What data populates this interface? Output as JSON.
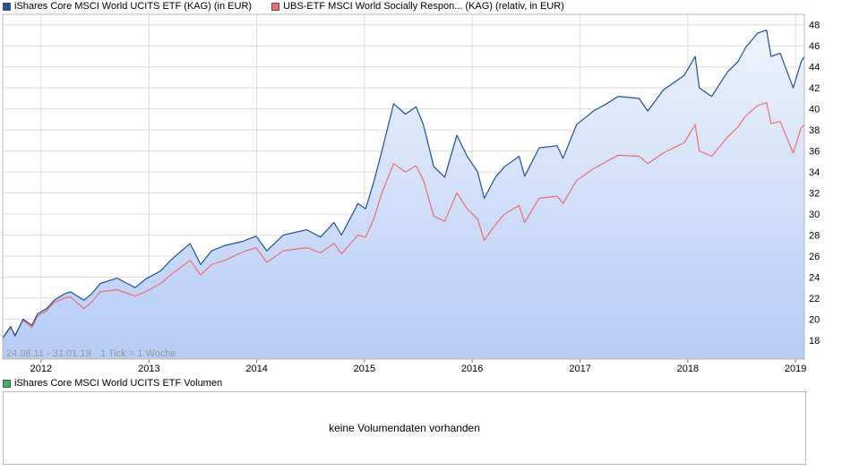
{
  "legend": {
    "series1": "iShares Core MSCI World UCITS ETF (KAG) (in EUR)",
    "series2": "UBS-ETF MSCI World Socially Respon... (KAG) (relativ, in EUR)",
    "volume": "iShares Core MSCI World UCITS ETF Volumen"
  },
  "colors": {
    "series1": "#1f4fa3",
    "series2": "#f06e6e",
    "volume": "#3cb371",
    "grid": "#dcdcdc",
    "area_top": "#eef3fd",
    "area_bottom": "#b5ccf5"
  },
  "range_label": "24.08.11 - 31.01.19",
  "tick_label": "1 Tick = 1 Woche",
  "volume_message": "keine Volumendaten vorhanden",
  "chart_data": {
    "type": "line",
    "x_range": [
      "2011-08-24",
      "2019-01-31"
    ],
    "ylim": [
      16.2,
      49
    ],
    "y_ticks": [
      18,
      20,
      22,
      24,
      26,
      28,
      30,
      32,
      34,
      36,
      38,
      40,
      42,
      44,
      46,
      48
    ],
    "x_ticks": [
      "2012",
      "2013",
      "2014",
      "2015",
      "2016",
      "2017",
      "2018",
      "2019"
    ],
    "grid": true,
    "legend_position": "top-left",
    "series": [
      {
        "name": "iShares Core MSCI World UCITS ETF (KAG) (in EUR)",
        "points": [
          [
            "2011-08-24",
            18.2
          ],
          [
            "2011-09-20",
            19.3
          ],
          [
            "2011-10-05",
            18.4
          ],
          [
            "2011-11-01",
            20.0
          ],
          [
            "2011-12-01",
            19.4
          ],
          [
            "2011-12-20",
            20.5
          ],
          [
            "2012-01-20",
            21.0
          ],
          [
            "2012-02-15",
            21.8
          ],
          [
            "2012-03-20",
            22.4
          ],
          [
            "2012-04-10",
            22.6
          ],
          [
            "2012-05-25",
            21.8
          ],
          [
            "2012-06-20",
            22.4
          ],
          [
            "2012-07-20",
            23.4
          ],
          [
            "2012-09-15",
            23.9
          ],
          [
            "2012-11-15",
            23.0
          ],
          [
            "2012-12-20",
            23.8
          ],
          [
            "2013-02-10",
            24.6
          ],
          [
            "2013-03-15",
            25.6
          ],
          [
            "2013-05-20",
            27.2
          ],
          [
            "2013-06-25",
            25.2
          ],
          [
            "2013-08-01",
            26.5
          ],
          [
            "2013-09-15",
            27.0
          ],
          [
            "2013-11-15",
            27.4
          ],
          [
            "2013-12-30",
            27.9
          ],
          [
            "2014-02-04",
            26.5
          ],
          [
            "2014-04-01",
            28.0
          ],
          [
            "2014-06-20",
            28.5
          ],
          [
            "2014-08-05",
            27.8
          ],
          [
            "2014-09-20",
            29.2
          ],
          [
            "2014-10-15",
            28.0
          ],
          [
            "2014-12-10",
            31.0
          ],
          [
            "2015-01-05",
            30.5
          ],
          [
            "2015-02-01",
            33.0
          ],
          [
            "2015-03-01",
            36.0
          ],
          [
            "2015-04-10",
            40.5
          ],
          [
            "2015-05-20",
            39.5
          ],
          [
            "2015-06-25",
            40.2
          ],
          [
            "2015-07-20",
            38.5
          ],
          [
            "2015-08-24",
            34.5
          ],
          [
            "2015-09-30",
            33.5
          ],
          [
            "2015-11-10",
            37.5
          ],
          [
            "2015-12-15",
            35.5
          ],
          [
            "2016-01-20",
            34.0
          ],
          [
            "2016-02-11",
            31.5
          ],
          [
            "2016-03-20",
            33.5
          ],
          [
            "2016-04-20",
            34.5
          ],
          [
            "2016-06-08",
            35.5
          ],
          [
            "2016-06-27",
            33.6
          ],
          [
            "2016-08-15",
            36.3
          ],
          [
            "2016-10-15",
            36.5
          ],
          [
            "2016-11-04",
            35.3
          ],
          [
            "2016-12-20",
            38.5
          ],
          [
            "2017-02-15",
            39.8
          ],
          [
            "2017-04-01",
            40.5
          ],
          [
            "2017-05-10",
            41.2
          ],
          [
            "2017-07-20",
            41.0
          ],
          [
            "2017-08-18",
            39.8
          ],
          [
            "2017-10-10",
            41.8
          ],
          [
            "2017-12-20",
            43.2
          ],
          [
            "2018-01-26",
            45.0
          ],
          [
            "2018-02-09",
            42.0
          ],
          [
            "2018-03-23",
            41.2
          ],
          [
            "2018-05-15",
            43.5
          ],
          [
            "2018-06-20",
            44.5
          ],
          [
            "2018-07-15",
            45.8
          ],
          [
            "2018-08-25",
            47.2
          ],
          [
            "2018-09-25",
            47.5
          ],
          [
            "2018-10-10",
            45.0
          ],
          [
            "2018-11-10",
            45.3
          ],
          [
            "2018-12-24",
            42.0
          ],
          [
            "2019-01-20",
            44.5
          ],
          [
            "2019-01-31",
            45.0
          ]
        ]
      },
      {
        "name": "UBS-ETF MSCI World Socially Respon... (KAG) (relativ, in EUR)",
        "points": [
          [
            "2011-08-24",
            18.2
          ],
          [
            "2011-09-20",
            19.2
          ],
          [
            "2011-10-05",
            18.5
          ],
          [
            "2011-11-01",
            19.9
          ],
          [
            "2011-12-01",
            19.2
          ],
          [
            "2011-12-20",
            20.3
          ],
          [
            "2012-01-20",
            20.8
          ],
          [
            "2012-02-15",
            21.6
          ],
          [
            "2012-03-20",
            22.0
          ],
          [
            "2012-04-10",
            22.1
          ],
          [
            "2012-05-25",
            21.0
          ],
          [
            "2012-06-20",
            21.6
          ],
          [
            "2012-07-20",
            22.6
          ],
          [
            "2012-09-15",
            22.8
          ],
          [
            "2012-11-15",
            22.2
          ],
          [
            "2012-12-20",
            22.6
          ],
          [
            "2013-02-10",
            23.4
          ],
          [
            "2013-03-15",
            24.2
          ],
          [
            "2013-05-20",
            25.6
          ],
          [
            "2013-06-25",
            24.2
          ],
          [
            "2013-08-01",
            25.2
          ],
          [
            "2013-09-15",
            25.6
          ],
          [
            "2013-11-15",
            26.4
          ],
          [
            "2013-12-30",
            26.8
          ],
          [
            "2014-02-04",
            25.4
          ],
          [
            "2014-04-01",
            26.5
          ],
          [
            "2014-06-20",
            26.8
          ],
          [
            "2014-08-05",
            26.3
          ],
          [
            "2014-09-20",
            27.2
          ],
          [
            "2014-10-15",
            26.2
          ],
          [
            "2014-12-10",
            28.0
          ],
          [
            "2015-01-05",
            27.8
          ],
          [
            "2015-02-01",
            29.5
          ],
          [
            "2015-03-01",
            32.0
          ],
          [
            "2015-04-10",
            34.8
          ],
          [
            "2015-05-20",
            34.0
          ],
          [
            "2015-06-25",
            34.6
          ],
          [
            "2015-07-20",
            33.2
          ],
          [
            "2015-08-24",
            29.8
          ],
          [
            "2015-09-30",
            29.3
          ],
          [
            "2015-11-10",
            32.0
          ],
          [
            "2015-12-15",
            30.5
          ],
          [
            "2016-01-20",
            29.5
          ],
          [
            "2016-02-11",
            27.5
          ],
          [
            "2016-03-20",
            29.0
          ],
          [
            "2016-04-20",
            30.0
          ],
          [
            "2016-06-08",
            30.8
          ],
          [
            "2016-06-27",
            29.2
          ],
          [
            "2016-08-15",
            31.5
          ],
          [
            "2016-10-15",
            31.7
          ],
          [
            "2016-11-04",
            31.0
          ],
          [
            "2016-12-20",
            33.2
          ],
          [
            "2017-02-15",
            34.3
          ],
          [
            "2017-04-01",
            35.0
          ],
          [
            "2017-05-10",
            35.6
          ],
          [
            "2017-07-20",
            35.5
          ],
          [
            "2017-08-18",
            34.8
          ],
          [
            "2017-10-10",
            35.8
          ],
          [
            "2017-12-20",
            36.8
          ],
          [
            "2018-01-26",
            38.5
          ],
          [
            "2018-02-09",
            36.0
          ],
          [
            "2018-03-23",
            35.5
          ],
          [
            "2018-05-15",
            37.3
          ],
          [
            "2018-06-20",
            38.3
          ],
          [
            "2018-07-15",
            39.3
          ],
          [
            "2018-08-25",
            40.3
          ],
          [
            "2018-09-25",
            40.6
          ],
          [
            "2018-10-10",
            38.6
          ],
          [
            "2018-11-10",
            38.8
          ],
          [
            "2018-12-24",
            35.8
          ],
          [
            "2019-01-20",
            38.2
          ],
          [
            "2019-01-31",
            38.5
          ]
        ]
      }
    ]
  }
}
